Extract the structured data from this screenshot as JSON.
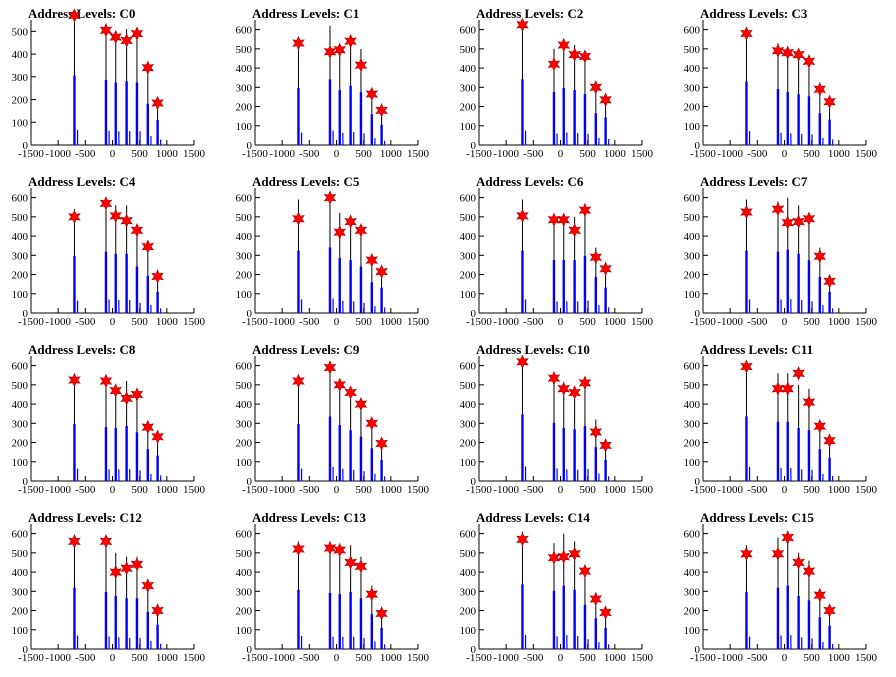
{
  "figure": {
    "background": "#ffffff"
  },
  "chart_data": [
    {
      "title": "Address Levels: C0",
      "type": "bar",
      "xlim": [
        -1500,
        1500
      ],
      "ylim": [
        0,
        550
      ],
      "xticks": [
        "-1500",
        "-1000",
        "-500",
        "0",
        "500",
        "1000",
        "1500"
      ],
      "yticks": [
        "0",
        "100",
        "200",
        "300",
        "400",
        "500"
      ],
      "peaks": [
        {
          "x": -700,
          "height": 555,
          "marker": 570
        },
        {
          "x": -120,
          "height": 520,
          "marker": 505
        },
        {
          "x": 60,
          "height": 500,
          "marker": 475
        },
        {
          "x": 260,
          "height": 510,
          "marker": 460
        },
        {
          "x": 450,
          "height": 500,
          "marker": 490
        },
        {
          "x": 650,
          "height": 330,
          "marker": 340
        },
        {
          "x": 830,
          "height": 200,
          "marker": 185
        }
      ]
    },
    {
      "title": "Address Levels: C1",
      "type": "bar",
      "xlim": [
        -1500,
        1500
      ],
      "ylim": [
        0,
        650
      ],
      "xticks": [
        "-1500",
        "-1000",
        "-500",
        "0",
        "500",
        "1000",
        "1500"
      ],
      "yticks": [
        "0",
        "100",
        "200",
        "300",
        "400",
        "500",
        "600"
      ],
      "peaks": [
        {
          "x": -700,
          "height": 540,
          "marker": 530
        },
        {
          "x": -120,
          "height": 620,
          "marker": 485
        },
        {
          "x": 60,
          "height": 520,
          "marker": 495
        },
        {
          "x": 260,
          "height": 560,
          "marker": 540
        },
        {
          "x": 450,
          "height": 500,
          "marker": 415
        },
        {
          "x": 650,
          "height": 290,
          "marker": 265
        },
        {
          "x": 830,
          "height": 190,
          "marker": 180
        }
      ]
    },
    {
      "title": "Address Levels: C2",
      "type": "bar",
      "xlim": [
        -1500,
        1500
      ],
      "ylim": [
        0,
        650
      ],
      "xticks": [
        "-1500",
        "-1000",
        "-500",
        "0",
        "500",
        "1000",
        "1500"
      ],
      "yticks": [
        "0",
        "100",
        "200",
        "300",
        "400",
        "500",
        "600"
      ],
      "peaks": [
        {
          "x": -700,
          "height": 620,
          "marker": 625
        },
        {
          "x": -120,
          "height": 500,
          "marker": 420
        },
        {
          "x": 60,
          "height": 540,
          "marker": 520
        },
        {
          "x": 260,
          "height": 520,
          "marker": 470
        },
        {
          "x": 450,
          "height": 480,
          "marker": 460
        },
        {
          "x": 650,
          "height": 300,
          "marker": 300
        },
        {
          "x": 830,
          "height": 260,
          "marker": 235
        }
      ]
    },
    {
      "title": "Address Levels: C3",
      "type": "bar",
      "xlim": [
        -1500,
        1500
      ],
      "ylim": [
        0,
        650
      ],
      "xticks": [
        "-1500",
        "-1000",
        "-500",
        "0",
        "500",
        "1000",
        "1500"
      ],
      "yticks": [
        "0",
        "100",
        "200",
        "300",
        "400",
        "500",
        "600"
      ],
      "peaks": [
        {
          "x": -700,
          "height": 600,
          "marker": 580
        },
        {
          "x": -120,
          "height": 530,
          "marker": 490
        },
        {
          "x": 60,
          "height": 500,
          "marker": 480
        },
        {
          "x": 260,
          "height": 480,
          "marker": 470
        },
        {
          "x": 450,
          "height": 460,
          "marker": 435
        },
        {
          "x": 650,
          "height": 300,
          "marker": 290
        },
        {
          "x": 830,
          "height": 240,
          "marker": 225
        }
      ]
    },
    {
      "title": "Address Levels: C4",
      "type": "bar",
      "xlim": [
        -1500,
        1500
      ],
      "ylim": [
        0,
        650
      ],
      "xticks": [
        "-1500",
        "-1000",
        "-500",
        "0",
        "500",
        "1000",
        "1500"
      ],
      "yticks": [
        "0",
        "100",
        "200",
        "300",
        "400",
        "500",
        "600"
      ],
      "peaks": [
        {
          "x": -700,
          "height": 540,
          "marker": 500
        },
        {
          "x": -120,
          "height": 580,
          "marker": 570
        },
        {
          "x": 60,
          "height": 560,
          "marker": 505
        },
        {
          "x": 260,
          "height": 560,
          "marker": 480
        },
        {
          "x": 450,
          "height": 440,
          "marker": 430
        },
        {
          "x": 650,
          "height": 350,
          "marker": 345
        },
        {
          "x": 830,
          "height": 200,
          "marker": 190
        }
      ]
    },
    {
      "title": "Address Levels: C5",
      "type": "bar",
      "xlim": [
        -1500,
        1500
      ],
      "ylim": [
        0,
        650
      ],
      "xticks": [
        "-1500",
        "-1000",
        "-500",
        "0",
        "500",
        "1000",
        "1500"
      ],
      "yticks": [
        "0",
        "100",
        "200",
        "300",
        "400",
        "500",
        "600"
      ],
      "peaks": [
        {
          "x": -700,
          "height": 590,
          "marker": 490
        },
        {
          "x": -120,
          "height": 620,
          "marker": 600
        },
        {
          "x": 60,
          "height": 520,
          "marker": 420
        },
        {
          "x": 260,
          "height": 500,
          "marker": 475
        },
        {
          "x": 450,
          "height": 440,
          "marker": 430
        },
        {
          "x": 650,
          "height": 290,
          "marker": 275
        },
        {
          "x": 830,
          "height": 240,
          "marker": 215
        }
      ]
    },
    {
      "title": "Address Levels: C6",
      "type": "bar",
      "xlim": [
        -1500,
        1500
      ],
      "ylim": [
        0,
        650
      ],
      "xticks": [
        "-1500",
        "-1000",
        "-500",
        "0",
        "500",
        "1000",
        "1500"
      ],
      "yticks": [
        "0",
        "100",
        "200",
        "300",
        "400",
        "500",
        "600"
      ],
      "peaks": [
        {
          "x": -700,
          "height": 590,
          "marker": 505
        },
        {
          "x": -120,
          "height": 500,
          "marker": 485
        },
        {
          "x": 60,
          "height": 500,
          "marker": 485
        },
        {
          "x": 260,
          "height": 500,
          "marker": 430
        },
        {
          "x": 450,
          "height": 540,
          "marker": 535
        },
        {
          "x": 650,
          "height": 340,
          "marker": 290
        },
        {
          "x": 830,
          "height": 240,
          "marker": 230
        }
      ]
    },
    {
      "title": "Address Levels: C7",
      "type": "bar",
      "xlim": [
        -1500,
        1500
      ],
      "ylim": [
        0,
        650
      ],
      "xticks": [
        "-1500",
        "-1000",
        "-500",
        "0",
        "500",
        "1000",
        "1500"
      ],
      "yticks": [
        "0",
        "100",
        "200",
        "300",
        "400",
        "500",
        "600"
      ],
      "peaks": [
        {
          "x": -700,
          "height": 590,
          "marker": 525
        },
        {
          "x": -120,
          "height": 580,
          "marker": 540
        },
        {
          "x": 60,
          "height": 600,
          "marker": 470
        },
        {
          "x": 260,
          "height": 560,
          "marker": 475
        },
        {
          "x": 450,
          "height": 500,
          "marker": 490
        },
        {
          "x": 650,
          "height": 340,
          "marker": 295
        },
        {
          "x": 830,
          "height": 200,
          "marker": 165
        }
      ]
    },
    {
      "title": "Address Levels: C8",
      "type": "bar",
      "xlim": [
        -1500,
        1500
      ],
      "ylim": [
        0,
        650
      ],
      "xticks": [
        "-1500",
        "-1000",
        "-500",
        "0",
        "500",
        "1000",
        "1500"
      ],
      "yticks": [
        "0",
        "100",
        "200",
        "300",
        "400",
        "500",
        "600"
      ],
      "peaks": [
        {
          "x": -700,
          "height": 540,
          "marker": 525
        },
        {
          "x": -120,
          "height": 510,
          "marker": 520
        },
        {
          "x": 60,
          "height": 500,
          "marker": 470
        },
        {
          "x": 260,
          "height": 520,
          "marker": 430
        },
        {
          "x": 450,
          "height": 460,
          "marker": 450
        },
        {
          "x": 650,
          "height": 300,
          "marker": 280
        },
        {
          "x": 830,
          "height": 240,
          "marker": 230
        }
      ]
    },
    {
      "title": "Address Levels: C9",
      "type": "bar",
      "xlim": [
        -1500,
        1500
      ],
      "ylim": [
        0,
        650
      ],
      "xticks": [
        "-1500",
        "-1000",
        "-500",
        "0",
        "500",
        "1000",
        "1500"
      ],
      "yticks": [
        "0",
        "100",
        "200",
        "300",
        "400",
        "500",
        "600"
      ],
      "peaks": [
        {
          "x": -700,
          "height": 540,
          "marker": 520
        },
        {
          "x": -120,
          "height": 610,
          "marker": 590
        },
        {
          "x": 60,
          "height": 530,
          "marker": 500
        },
        {
          "x": 260,
          "height": 480,
          "marker": 460
        },
        {
          "x": 450,
          "height": 420,
          "marker": 400
        },
        {
          "x": 650,
          "height": 310,
          "marker": 300
        },
        {
          "x": 830,
          "height": 200,
          "marker": 195
        }
      ]
    },
    {
      "title": "Address Levels: C10",
      "type": "bar",
      "xlim": [
        -1500,
        1500
      ],
      "ylim": [
        0,
        650
      ],
      "xticks": [
        "-1500",
        "-1000",
        "-500",
        "0",
        "500",
        "1000",
        "1500"
      ],
      "yticks": [
        "0",
        "100",
        "200",
        "300",
        "400",
        "500",
        "600"
      ],
      "peaks": [
        {
          "x": -700,
          "height": 630,
          "marker": 620
        },
        {
          "x": -120,
          "height": 550,
          "marker": 535
        },
        {
          "x": 60,
          "height": 500,
          "marker": 480
        },
        {
          "x": 260,
          "height": 490,
          "marker": 460
        },
        {
          "x": 450,
          "height": 520,
          "marker": 510
        },
        {
          "x": 650,
          "height": 320,
          "marker": 255
        },
        {
          "x": 830,
          "height": 200,
          "marker": 185
        }
      ]
    },
    {
      "title": "Address Levels: C11",
      "type": "bar",
      "xlim": [
        -1500,
        1500
      ],
      "ylim": [
        0,
        650
      ],
      "xticks": [
        "-1500",
        "-1000",
        "-500",
        "0",
        "500",
        "1000",
        "1500"
      ],
      "yticks": [
        "0",
        "100",
        "200",
        "300",
        "400",
        "500",
        "600"
      ],
      "peaks": [
        {
          "x": -700,
          "height": 610,
          "marker": 595
        },
        {
          "x": -120,
          "height": 560,
          "marker": 480
        },
        {
          "x": 60,
          "height": 560,
          "marker": 480
        },
        {
          "x": 260,
          "height": 500,
          "marker": 560
        },
        {
          "x": 450,
          "height": 480,
          "marker": 410
        },
        {
          "x": 650,
          "height": 300,
          "marker": 285
        },
        {
          "x": 830,
          "height": 220,
          "marker": 210
        }
      ]
    },
    {
      "title": "Address Levels: C12",
      "type": "bar",
      "xlim": [
        -1500,
        1500
      ],
      "ylim": [
        0,
        650
      ],
      "xticks": [
        "-1500",
        "-1000",
        "-500",
        "0",
        "500",
        "1000",
        "1500"
      ],
      "yticks": [
        "0",
        "100",
        "200",
        "300",
        "400",
        "500",
        "600"
      ],
      "peaks": [
        {
          "x": -700,
          "height": 580,
          "marker": 560
        },
        {
          "x": -120,
          "height": 540,
          "marker": 560
        },
        {
          "x": 60,
          "height": 500,
          "marker": 400
        },
        {
          "x": 260,
          "height": 480,
          "marker": 420
        },
        {
          "x": 450,
          "height": 480,
          "marker": 440
        },
        {
          "x": 650,
          "height": 350,
          "marker": 330
        },
        {
          "x": 830,
          "height": 230,
          "marker": 200
        }
      ]
    },
    {
      "title": "Address Levels: C13",
      "type": "bar",
      "xlim": [
        -1500,
        1500
      ],
      "ylim": [
        0,
        650
      ],
      "xticks": [
        "-1500",
        "-1000",
        "-500",
        "0",
        "500",
        "1000",
        "1500"
      ],
      "yticks": [
        "0",
        "100",
        "200",
        "300",
        "400",
        "500",
        "600"
      ],
      "peaks": [
        {
          "x": -700,
          "height": 560,
          "marker": 520
        },
        {
          "x": -120,
          "height": 530,
          "marker": 525
        },
        {
          "x": 60,
          "height": 520,
          "marker": 515
        },
        {
          "x": 260,
          "height": 540,
          "marker": 450
        },
        {
          "x": 450,
          "height": 480,
          "marker": 430
        },
        {
          "x": 650,
          "height": 330,
          "marker": 285
        },
        {
          "x": 830,
          "height": 200,
          "marker": 185
        }
      ]
    },
    {
      "title": "Address Levels: C14",
      "type": "bar",
      "xlim": [
        -1500,
        1500
      ],
      "ylim": [
        0,
        650
      ],
      "xticks": [
        "-1500",
        "-1000",
        "-500",
        "0",
        "500",
        "1000",
        "1500"
      ],
      "yticks": [
        "0",
        "100",
        "200",
        "300",
        "400",
        "500",
        "600"
      ],
      "peaks": [
        {
          "x": -700,
          "height": 610,
          "marker": 570
        },
        {
          "x": -120,
          "height": 550,
          "marker": 475
        },
        {
          "x": 60,
          "height": 600,
          "marker": 480
        },
        {
          "x": 260,
          "height": 560,
          "marker": 495
        },
        {
          "x": 450,
          "height": 420,
          "marker": 405
        },
        {
          "x": 650,
          "height": 290,
          "marker": 260
        },
        {
          "x": 830,
          "height": 200,
          "marker": 190
        }
      ]
    },
    {
      "title": "Address Levels: C15",
      "type": "bar",
      "xlim": [
        -1500,
        1500
      ],
      "ylim": [
        0,
        650
      ],
      "xticks": [
        "-1500",
        "-1000",
        "-500",
        "0",
        "500",
        "1000",
        "1500"
      ],
      "yticks": [
        "0",
        "100",
        "200",
        "300",
        "400",
        "500",
        "600"
      ],
      "peaks": [
        {
          "x": -700,
          "height": 540,
          "marker": 495
        },
        {
          "x": -120,
          "height": 580,
          "marker": 495
        },
        {
          "x": 60,
          "height": 600,
          "marker": 580
        },
        {
          "x": 260,
          "height": 500,
          "marker": 450
        },
        {
          "x": 450,
          "height": 460,
          "marker": 405
        },
        {
          "x": 650,
          "height": 300,
          "marker": 280
        },
        {
          "x": 830,
          "height": 220,
          "marker": 200
        }
      ]
    }
  ],
  "colors": {
    "bar_fill": "#0000ff",
    "outline": "#000000",
    "marker": "#ff0000"
  }
}
